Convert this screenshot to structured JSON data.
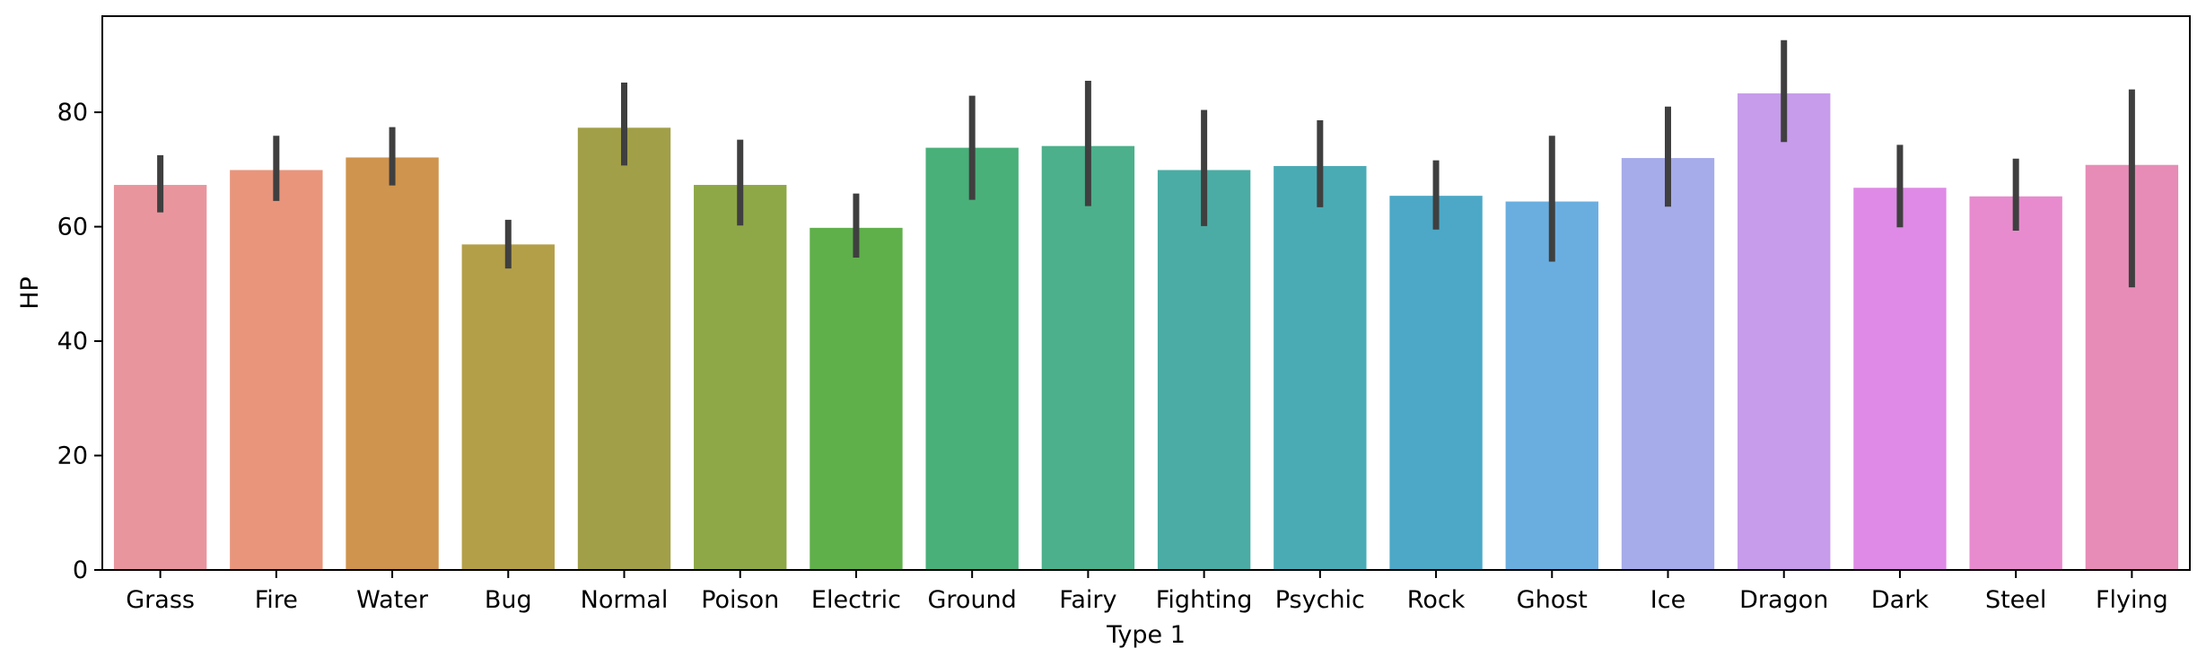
{
  "chart_data": {
    "type": "bar",
    "xlabel": "Type 1",
    "ylabel": "HP",
    "ylim": [
      0,
      96.8
    ],
    "yticks": [
      0,
      20,
      40,
      60,
      80
    ],
    "grid": false,
    "error_bar_color": "#3f3f3f",
    "categories": [
      "Grass",
      "Fire",
      "Water",
      "Bug",
      "Normal",
      "Poison",
      "Electric",
      "Ground",
      "Fairy",
      "Fighting",
      "Psychic",
      "Rock",
      "Ghost",
      "Ice",
      "Dragon",
      "Dark",
      "Steel",
      "Flying"
    ],
    "values": [
      67.3,
      69.9,
      72.1,
      56.9,
      77.3,
      67.3,
      59.8,
      73.8,
      74.1,
      69.9,
      70.6,
      65.4,
      64.4,
      72.0,
      83.3,
      66.8,
      65.3,
      70.8
    ],
    "ci_low": [
      62.5,
      64.5,
      67.2,
      52.7,
      70.7,
      60.2,
      54.6,
      64.7,
      63.6,
      60.1,
      63.4,
      59.5,
      53.9,
      63.5,
      74.8,
      59.9,
      59.3,
      49.4
    ],
    "ci_high": [
      72.5,
      75.9,
      77.4,
      61.2,
      85.2,
      75.2,
      65.8,
      82.9,
      85.5,
      80.4,
      78.6,
      71.6,
      75.9,
      81.0,
      92.6,
      74.3,
      71.9,
      84.0
    ],
    "colors": [
      "#e9959e",
      "#e8957c",
      "#cf944e",
      "#b49f49",
      "#a19f47",
      "#8ea847",
      "#5faf4b",
      "#49b07a",
      "#4bb08b",
      "#4aaca4",
      "#4aabb5",
      "#4ca8c6",
      "#6aaee0",
      "#a6abea",
      "#c69ceb",
      "#de8ae6",
      "#e88bce",
      "#e78cb6"
    ]
  }
}
